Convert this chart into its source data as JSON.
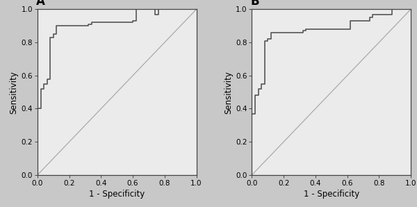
{
  "panel_A_label": "A",
  "panel_B_label": "B",
  "xlabel": "1 - Specificity",
  "ylabel": "Sensitivity",
  "xlim": [
    0.0,
    1.0
  ],
  "ylim": [
    0.0,
    1.0
  ],
  "xticks": [
    0.0,
    0.2,
    0.4,
    0.6,
    0.8,
    1.0
  ],
  "yticks": [
    0.0,
    0.2,
    0.4,
    0.6,
    0.8,
    1.0
  ],
  "bg_color": "#ebebeb",
  "fig_color": "#c8c8c8",
  "roc_color": "#555555",
  "diag_color": "#aaaaaa",
  "roc_lw": 1.2,
  "diag_lw": 0.9,
  "roc_A_x": [
    0.0,
    0.0,
    0.0,
    0.0,
    0.0,
    0.02,
    0.02,
    0.04,
    0.04,
    0.06,
    0.06,
    0.08,
    0.08,
    0.1,
    0.1,
    0.12,
    0.12,
    0.14,
    0.14,
    0.32,
    0.32,
    0.34,
    0.34,
    0.6,
    0.6,
    0.62,
    0.62,
    0.74,
    0.74,
    0.76,
    0.76,
    0.88,
    0.88,
    1.0
  ],
  "roc_A_y": [
    0.0,
    0.33,
    0.35,
    0.38,
    0.4,
    0.4,
    0.52,
    0.52,
    0.55,
    0.55,
    0.58,
    0.58,
    0.83,
    0.83,
    0.85,
    0.85,
    0.9,
    0.9,
    0.9,
    0.9,
    0.91,
    0.91,
    0.92,
    0.92,
    0.93,
    0.93,
    1.0,
    1.0,
    0.97,
    0.97,
    1.0,
    1.0,
    1.0,
    1.0
  ],
  "roc_B_x": [
    0.0,
    0.0,
    0.0,
    0.0,
    0.02,
    0.02,
    0.04,
    0.04,
    0.06,
    0.06,
    0.08,
    0.08,
    0.1,
    0.1,
    0.12,
    0.12,
    0.14,
    0.14,
    0.32,
    0.32,
    0.34,
    0.34,
    0.6,
    0.6,
    0.62,
    0.62,
    0.74,
    0.74,
    0.76,
    0.76,
    0.88,
    0.88,
    1.0
  ],
  "roc_B_y": [
    0.0,
    0.3,
    0.32,
    0.37,
    0.37,
    0.48,
    0.48,
    0.52,
    0.52,
    0.55,
    0.55,
    0.81,
    0.81,
    0.82,
    0.82,
    0.86,
    0.86,
    0.86,
    0.86,
    0.87,
    0.87,
    0.88,
    0.88,
    0.88,
    0.88,
    0.93,
    0.93,
    0.95,
    0.95,
    0.97,
    0.97,
    1.0,
    1.0
  ],
  "tick_fontsize": 7.5,
  "label_fontsize": 8.5,
  "panel_label_fontsize": 12,
  "spine_color": "#444444",
  "tick_color": "#444444"
}
